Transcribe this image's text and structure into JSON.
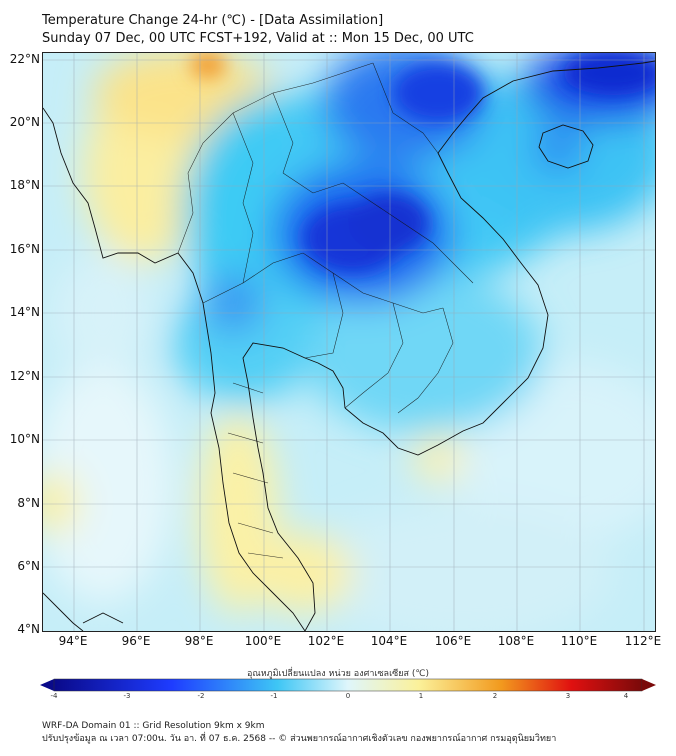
{
  "header": {
    "line1": "Temperature Change 24-hr (℃) - [Data Assimilation]",
    "line2": "Sunday 07 Dec, 00 UTC FCST+192, Valid at :: Mon 15 Dec, 00 UTC"
  },
  "map": {
    "lat_labels": [
      "22°N",
      "20°N",
      "18°N",
      "16°N",
      "14°N",
      "12°N",
      "10°N",
      "8°N",
      "6°N",
      "4°N"
    ],
    "lon_labels": [
      "94°E",
      "96°E",
      "98°E",
      "100°E",
      "102°E",
      "104°E",
      "106°E",
      "108°E",
      "110°E",
      "112°E"
    ]
  },
  "colorbar": {
    "title": "อุณหภูมิเปลี่ยนแปลง หน่วย องศาเซลเซียส (℃)",
    "ticks": [
      "-4",
      "-3",
      "-2",
      "-1",
      "0",
      "1",
      "2",
      "3",
      "4"
    ],
    "colors": {
      "deep_blue": "#0a0a8a",
      "blue": "#1e3cff",
      "light_blue": "#3ec6f5",
      "pale": "#dff6fb",
      "yellow": "#fbf19a",
      "orange": "#f29a1e",
      "red": "#e01010",
      "dark_red": "#7a0a0a"
    }
  },
  "footer": {
    "line1": "WRF-DA Domain 01 :: Grid Resolution 9km x 9km",
    "line2": "ปรับปรุงข้อมูล ณ เวลา 07:00น. วัน อา. ที่ 07 ธ.ค. 2568 -- © ส่วนพยากรณ์อากาศเชิงตัวเลข กองพยากรณ์อากาศ กรมอุตุนิยมวิทยา"
  }
}
